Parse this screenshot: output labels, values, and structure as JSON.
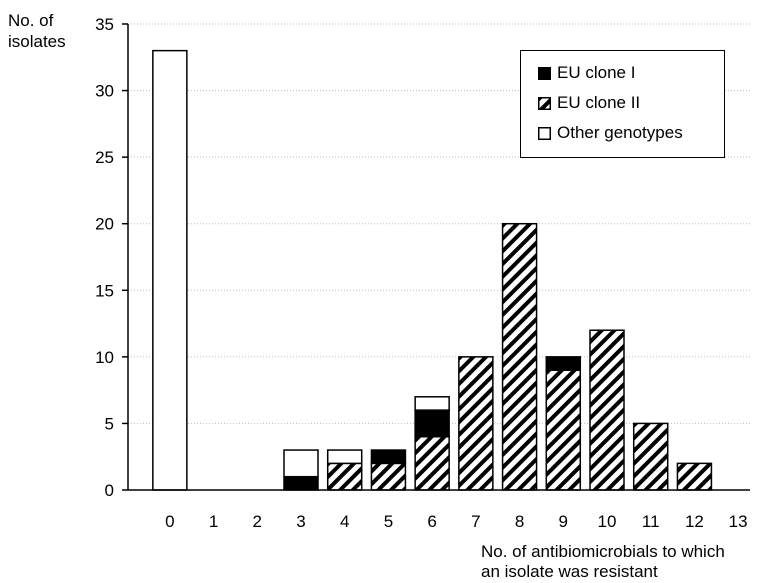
{
  "chart_data": {
    "type": "bar",
    "stacked": true,
    "title": "",
    "ylabel": "No. of\nisolates",
    "xlabel": "No. of antibiomicrobials to which\nan isolate was resistant",
    "categories": [
      "0",
      "1",
      "2",
      "3",
      "4",
      "5",
      "6",
      "7",
      "8",
      "9",
      "10",
      "11",
      "12",
      "13"
    ],
    "ylim": [
      0,
      35
    ],
    "yticks": [
      0,
      5,
      10,
      15,
      20,
      25,
      30,
      35
    ],
    "grid": "horizontal-dotted",
    "legend_position": "top-right",
    "series": [
      {
        "name": "EU clone I",
        "pattern": "solid-black",
        "values": [
          0,
          0,
          0,
          1,
          0,
          1,
          2,
          0,
          0,
          1,
          0,
          0,
          0,
          0
        ]
      },
      {
        "name": "EU clone II",
        "pattern": "diagonal-hatch",
        "values": [
          0,
          0,
          0,
          0,
          2,
          2,
          4,
          10,
          20,
          9,
          12,
          5,
          2,
          0
        ]
      },
      {
        "name": "Other genotypes",
        "pattern": "white",
        "values": [
          33,
          0,
          0,
          2,
          1,
          0,
          1,
          0,
          0,
          0,
          0,
          0,
          0,
          0
        ]
      }
    ],
    "stack_order": [
      "EU clone II",
      "EU clone I",
      "Other genotypes"
    ]
  }
}
